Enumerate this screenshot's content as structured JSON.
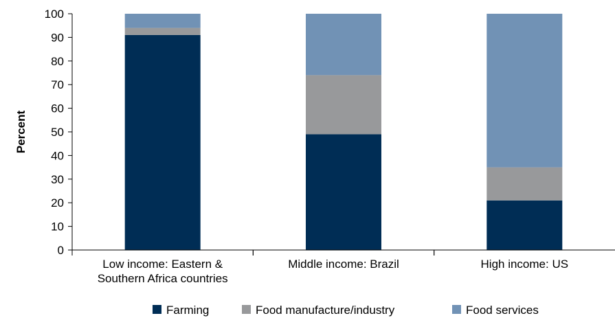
{
  "chart_data": {
    "type": "bar",
    "stacked": true,
    "ylabel": "Percent",
    "ylim": [
      0,
      100
    ],
    "yticks": [
      0,
      10,
      20,
      30,
      40,
      50,
      60,
      70,
      80,
      90,
      100
    ],
    "categories": [
      [
        "Low income: Eastern &",
        "Southern Africa countries"
      ],
      [
        "Middle income: Brazil"
      ],
      [
        "High income: US"
      ]
    ],
    "series": [
      {
        "name": "Farming",
        "color": "#002d55",
        "values": [
          91,
          49,
          21
        ]
      },
      {
        "name": "Food manufacture/industry",
        "color": "#98999b",
        "values": [
          3,
          25,
          14
        ]
      },
      {
        "name": "Food services",
        "color": "#7192b5",
        "values": [
          6,
          26,
          65
        ]
      }
    ],
    "legend_position": "bottom",
    "grid": false
  }
}
